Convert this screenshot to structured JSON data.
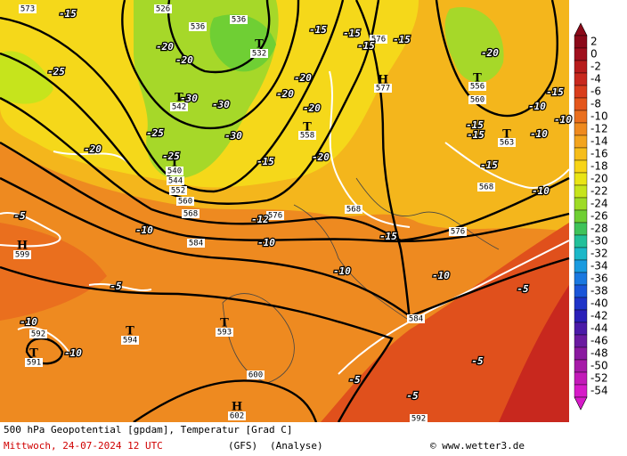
{
  "map": {
    "centers": [
      "T",
      "T",
      "T",
      "T",
      "H",
      "T",
      "T",
      "H",
      "T",
      "T",
      "T",
      "H"
    ],
    "height_labels": [
      526,
      536,
      536,
      532,
      542,
      540,
      544,
      552,
      560,
      568,
      558,
      576,
      577,
      556,
      560,
      563,
      568,
      576,
      568,
      576,
      584,
      599,
      592,
      591,
      594,
      593,
      584,
      600,
      602,
      573,
      592
    ],
    "temp_labels": [
      -15,
      -20,
      -20,
      -25,
      -30,
      -30,
      -25,
      -30,
      -20,
      -25,
      -15,
      -15,
      -15,
      -15,
      -20,
      -20,
      -20,
      -20,
      -15,
      -10,
      -15,
      -15,
      -10,
      -10,
      -15,
      -20,
      -15,
      -10,
      -12,
      -10,
      -10,
      -15,
      -10,
      -10,
      -5,
      -5,
      -5,
      -10,
      -10,
      -5,
      -5,
      -5
    ]
  },
  "legend": {
    "values": [
      2,
      0,
      -2,
      -4,
      -6,
      -8,
      -10,
      -12,
      -14,
      -16,
      -18,
      -20,
      -22,
      -24,
      -26,
      -28,
      -30,
      -32,
      -34,
      -36,
      -38,
      -40,
      -42,
      -44,
      -46,
      -48,
      -50,
      -52,
      -54
    ],
    "colors": [
      "#8b0a1a",
      "#a0101e",
      "#b71c1c",
      "#c8281e",
      "#d93d1c",
      "#e4561c",
      "#ea6f1e",
      "#ef8a1f",
      "#f3a41e",
      "#f6bd1a",
      "#f7d417",
      "#e9e416",
      "#c6e41c",
      "#9edb26",
      "#6fcf34",
      "#3fc35a",
      "#22c09a",
      "#1cb8c8",
      "#1a9be0",
      "#1a78e0",
      "#1a55d8",
      "#1f34c8",
      "#2a1fb8",
      "#4a1aa8",
      "#6a1aa0",
      "#8a1aa0",
      "#a61aa8",
      "#c21ab8",
      "#d61ac8"
    ]
  },
  "footer": {
    "title": "500 hPa Geopotential [gpdam], Temperatur [Grad C]",
    "date": "Mittwoch, 24-07-2024  12 UTC",
    "model": "(GFS)",
    "run": "(Analyse)",
    "credit": "© www.wetter3.de"
  }
}
